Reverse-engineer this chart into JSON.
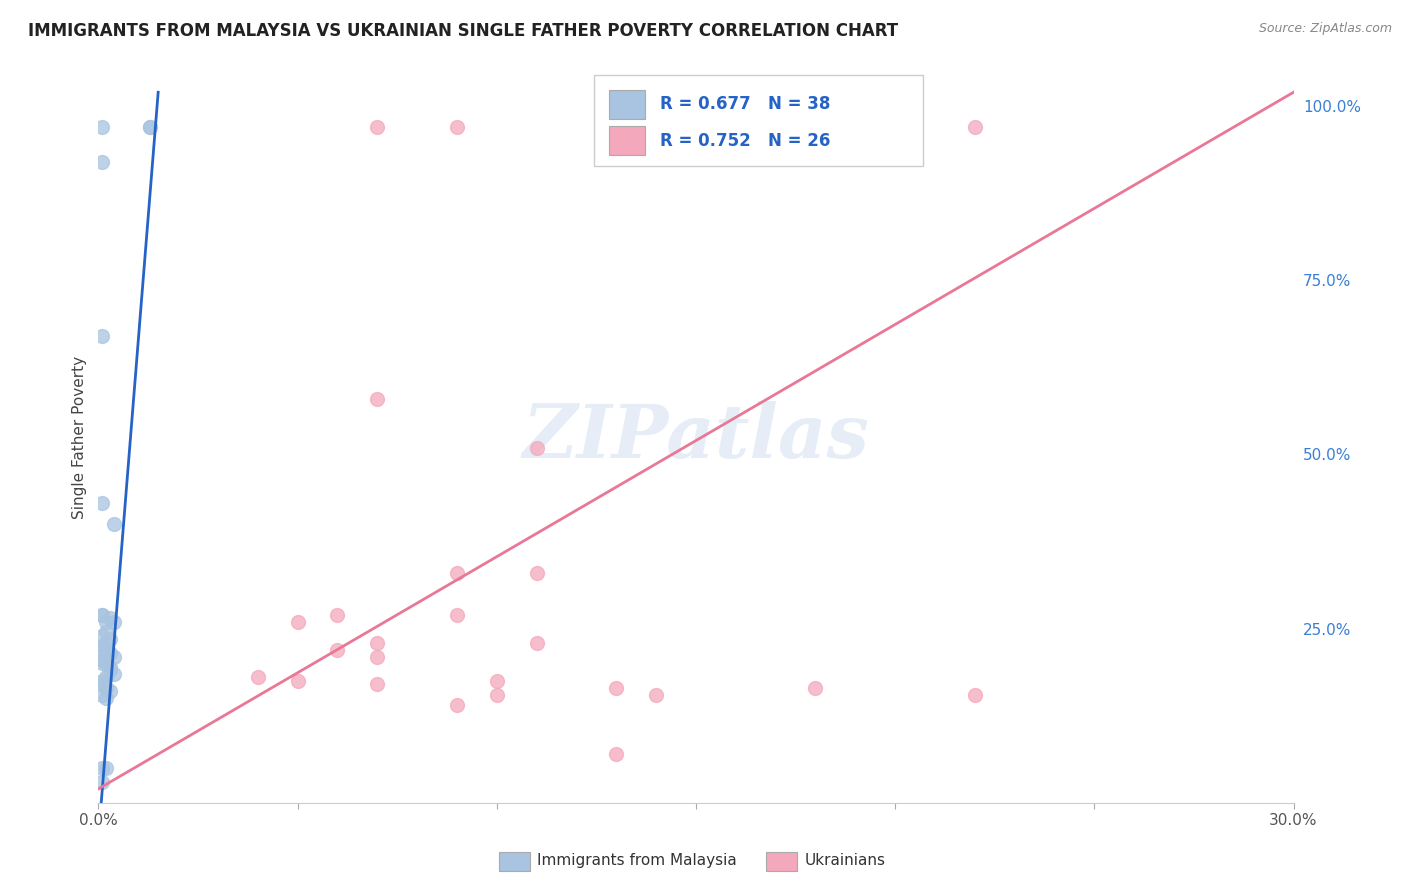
{
  "title": "IMMIGRANTS FROM MALAYSIA VS UKRAINIAN SINGLE FATHER POVERTY CORRELATION CHART",
  "source": "Source: ZipAtlas.com",
  "ylabel": "Single Father Poverty",
  "xlim": [
    0.0,
    0.3
  ],
  "ylim": [
    0.0,
    1.05
  ],
  "x_ticks": [
    0.0,
    0.05,
    0.1,
    0.15,
    0.2,
    0.25,
    0.3
  ],
  "y_ticks_right": [
    0.25,
    0.5,
    0.75,
    1.0
  ],
  "y_tick_labels_right": [
    "25.0%",
    "50.0%",
    "75.0%",
    "100.0%"
  ],
  "R_blue": 0.677,
  "N_blue": 38,
  "R_pink": 0.752,
  "N_pink": 26,
  "blue_color": "#a8c4e0",
  "pink_color": "#f4a8bc",
  "blue_line_color": "#2563c7",
  "pink_line_color": "#e87896",
  "legend_text_color": "#2563c7",
  "watermark": "ZIPatlas",
  "blue_dots": [
    [
      0.001,
      0.97
    ],
    [
      0.001,
      0.92
    ],
    [
      0.013,
      0.97
    ],
    [
      0.013,
      0.97
    ],
    [
      0.001,
      0.67
    ],
    [
      0.004,
      0.4
    ],
    [
      0.001,
      0.43
    ],
    [
      0.001,
      0.27
    ],
    [
      0.001,
      0.27
    ],
    [
      0.003,
      0.265
    ],
    [
      0.002,
      0.26
    ],
    [
      0.004,
      0.26
    ],
    [
      0.002,
      0.245
    ],
    [
      0.001,
      0.24
    ],
    [
      0.003,
      0.235
    ],
    [
      0.002,
      0.23
    ],
    [
      0.001,
      0.225
    ],
    [
      0.002,
      0.22
    ],
    [
      0.001,
      0.22
    ],
    [
      0.003,
      0.215
    ],
    [
      0.004,
      0.21
    ],
    [
      0.002,
      0.21
    ],
    [
      0.001,
      0.205
    ],
    [
      0.001,
      0.2
    ],
    [
      0.002,
      0.2
    ],
    [
      0.003,
      0.195
    ],
    [
      0.003,
      0.19
    ],
    [
      0.004,
      0.185
    ],
    [
      0.002,
      0.18
    ],
    [
      0.001,
      0.175
    ],
    [
      0.001,
      0.17
    ],
    [
      0.002,
      0.165
    ],
    [
      0.003,
      0.16
    ],
    [
      0.001,
      0.155
    ],
    [
      0.002,
      0.15
    ],
    [
      0.001,
      0.05
    ],
    [
      0.002,
      0.05
    ],
    [
      0.001,
      0.03
    ]
  ],
  "pink_dots": [
    [
      0.07,
      0.97
    ],
    [
      0.09,
      0.97
    ],
    [
      0.14,
      0.97
    ],
    [
      0.22,
      0.97
    ],
    [
      0.07,
      0.58
    ],
    [
      0.11,
      0.51
    ],
    [
      0.09,
      0.33
    ],
    [
      0.11,
      0.33
    ],
    [
      0.06,
      0.27
    ],
    [
      0.09,
      0.27
    ],
    [
      0.05,
      0.26
    ],
    [
      0.07,
      0.23
    ],
    [
      0.11,
      0.23
    ],
    [
      0.06,
      0.22
    ],
    [
      0.07,
      0.21
    ],
    [
      0.04,
      0.18
    ],
    [
      0.05,
      0.175
    ],
    [
      0.1,
      0.175
    ],
    [
      0.07,
      0.17
    ],
    [
      0.13,
      0.165
    ],
    [
      0.18,
      0.165
    ],
    [
      0.1,
      0.155
    ],
    [
      0.14,
      0.155
    ],
    [
      0.22,
      0.155
    ],
    [
      0.09,
      0.14
    ],
    [
      0.13,
      0.07
    ]
  ],
  "blue_line": [
    [
      0.0,
      -0.05
    ],
    [
      0.015,
      1.02
    ]
  ],
  "pink_line": [
    [
      0.0,
      0.02
    ],
    [
      0.3,
      1.02
    ]
  ]
}
